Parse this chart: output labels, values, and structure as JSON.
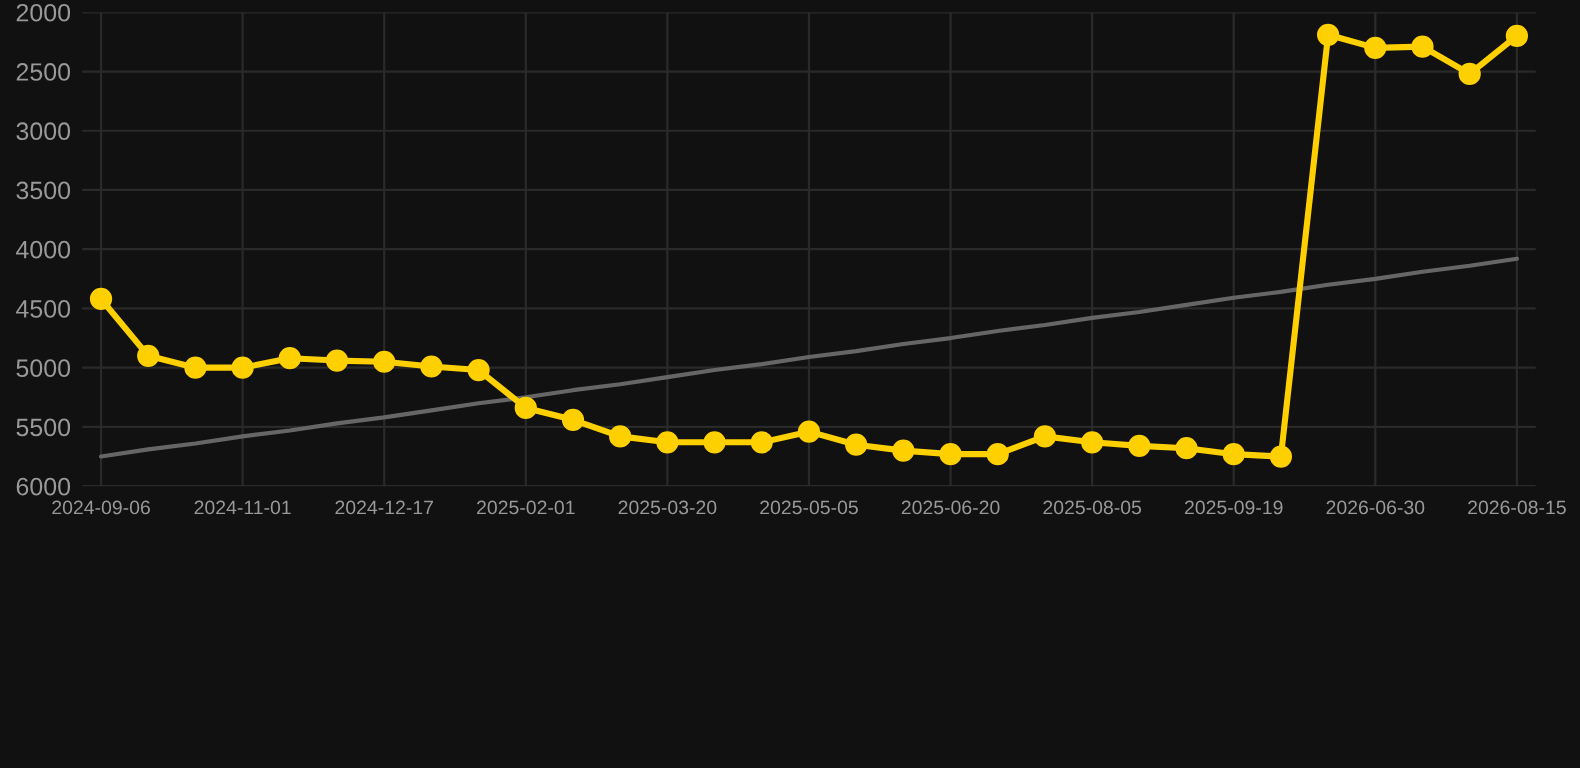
{
  "chart_data": {
    "type": "line",
    "categories": [
      "2024-09-06",
      null,
      null,
      "2024-11-01",
      null,
      null,
      "2024-12-17",
      null,
      null,
      "2025-02-01",
      null,
      null,
      "2025-03-20",
      null,
      null,
      "2025-05-05",
      null,
      null,
      "2025-06-20",
      null,
      null,
      "2025-08-05",
      null,
      null,
      "2025-09-19",
      null,
      null,
      "2026-06-30",
      null,
      null,
      "2026-08-15"
    ],
    "series": [
      {
        "type": "line",
        "color": "#ffd000",
        "marker": "circle",
        "values": [
          4420,
          4900,
          5000,
          5000,
          4920,
          4940,
          4950,
          4990,
          5020,
          5340,
          5440,
          5580,
          5630,
          5630,
          5630,
          5540,
          5650,
          5700,
          5730,
          5730,
          5580,
          5630,
          5660,
          5680,
          5730,
          5750,
          2190,
          2300,
          2290,
          2520,
          2200
        ]
      },
      {
        "type": "line",
        "color": "#666666",
        "values": [
          5750,
          5690,
          5640,
          5580,
          5530,
          5470,
          5420,
          5360,
          5300,
          5250,
          5190,
          5140,
          5080,
          5020,
          4970,
          4910,
          4860,
          4800,
          4750,
          4690,
          4640,
          4580,
          4530,
          4470,
          4410,
          4360,
          4300,
          4250,
          4190,
          4140,
          4080
        ]
      }
    ],
    "ylim": [
      6000,
      2000
    ],
    "yticks": [
      2000,
      2500,
      3000,
      3500,
      4000,
      4500,
      5000,
      5500,
      6000
    ],
    "grid": true
  }
}
